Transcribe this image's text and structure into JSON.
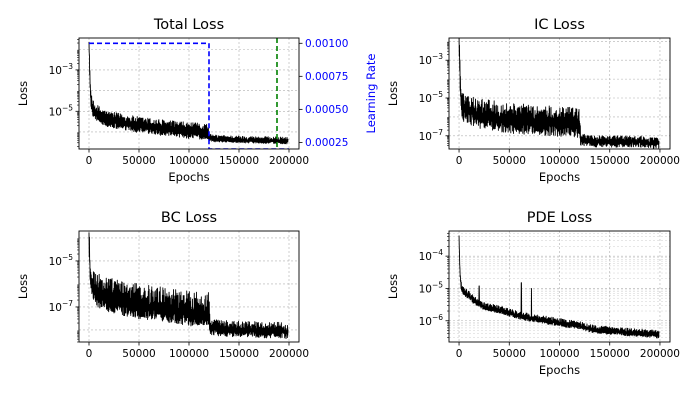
{
  "chart_data": [
    {
      "type": "line",
      "title": "Total Loss",
      "xlabel": "Epochs",
      "ylabel": "Loss",
      "ylabel_right": "Learning Rate",
      "xlim": [
        -10000,
        210000
      ],
      "ylim": [
        1.5e-07,
        0.035
      ],
      "y_scale": "log",
      "x_ticks": [
        0,
        50000,
        100000,
        150000,
        200000
      ],
      "x_tick_labels": [
        "0",
        "50000",
        "100000",
        "150000",
        "200000"
      ],
      "y_ticks": [
        0.001,
        1e-05
      ],
      "y_tick_labels": [
        "10−3",
        "10−5"
      ],
      "y2_lim": [
        0.0002,
        0.00104
      ],
      "y2_ticks": [
        0.00025,
        0.0005,
        0.00075,
        0.001
      ],
      "y2_tick_labels": [
        "0.00025",
        "0.00050",
        "0.00075",
        "0.00100"
      ],
      "grid": true,
      "series": [
        {
          "x": [
            0,
            1000,
            2000,
            3000,
            5000,
            8000,
            10000,
            15000,
            20000,
            30000,
            40000,
            50000,
            60000,
            70000,
            80000,
            90000,
            100000,
            110000,
            119000,
            120000,
            125000,
            130000,
            140000,
            150000,
            160000,
            170000,
            180000,
            190000,
            199000
          ],
          "y": [
            0.02,
            0.0002,
            3e-05,
            1.5e-05,
            9e-06,
            7e-06,
            6e-06,
            4e-06,
            3.3e-06,
            2.7e-06,
            2.2e-06,
            1.8e-06,
            1.6e-06,
            1.4e-06,
            1.2e-06,
            1.1e-06,
            9.5e-07,
            9e-07,
            8.5e-07,
            5e-07,
            4.5e-07,
            4.3e-07,
            4.2e-07,
            4e-07,
            3.9e-07,
            3.8e-07,
            3.7e-07,
            3.6e-07,
            3.5e-07
          ],
          "noise_top": [
            3,
            3,
            3,
            3,
            3,
            3,
            3,
            3,
            3,
            3,
            3,
            3,
            3,
            3,
            3,
            3,
            3,
            3,
            3,
            1.6,
            1.6,
            1.6,
            1.6,
            1.6,
            1.6,
            1.6,
            1.6,
            1.6,
            1.6
          ],
          "noise_bottom": [
            0.5,
            0.5,
            0.5,
            0.5,
            0.5,
            0.5,
            0.5,
            0.5,
            0.5,
            0.5,
            0.5,
            0.5,
            0.5,
            0.5,
            0.5,
            0.5,
            0.5,
            0.5,
            0.5,
            0.75,
            0.75,
            0.75,
            0.75,
            0.75,
            0.75,
            0.75,
            0.75,
            0.75,
            0.75
          ],
          "color": "#000000"
        }
      ],
      "lr_series": {
        "x": [
          0,
          120000,
          120000,
          200000
        ],
        "y": [
          0.001,
          0.001,
          0.0002,
          0.0002
        ],
        "color": "#0000ff",
        "style": "dashed"
      },
      "vline": {
        "x": 188000,
        "color": "#008000",
        "style": "dashed"
      }
    },
    {
      "type": "line",
      "title": "IC Loss",
      "xlabel": "Epochs",
      "ylabel": "Loss",
      "xlim": [
        -10000,
        210000
      ],
      "ylim": [
        2e-08,
        0.015
      ],
      "y_scale": "log",
      "x_ticks": [
        0,
        50000,
        100000,
        150000,
        200000
      ],
      "x_tick_labels": [
        "0",
        "50000",
        "100000",
        "150000",
        "200000"
      ],
      "y_ticks": [
        0.001,
        1e-05,
        1e-07
      ],
      "y_tick_labels": [
        "10−3",
        "10−5",
        "10−7"
      ],
      "grid": true,
      "series": [
        {
          "x": [
            0,
            1000,
            2000,
            4000,
            6000,
            10000,
            15000,
            20000,
            30000,
            40000,
            50000,
            60000,
            70000,
            80000,
            90000,
            100000,
            110000,
            120000,
            121000,
            125000,
            130000,
            140000,
            150000,
            160000,
            170000,
            180000,
            190000,
            199000
          ],
          "y": [
            0.008,
            0.00015,
            8e-06,
            3e-06,
            2.5e-06,
            2e-06,
            1.5e-06,
            1.2e-06,
            1e-06,
            8e-07,
            7e-07,
            6e-07,
            6e-07,
            5e-07,
            5e-07,
            4e-07,
            4e-07,
            4e-07,
            6e-08,
            6e-08,
            5e-08,
            5e-08,
            5e-08,
            5e-08,
            5e-08,
            5e-08,
            4e-08,
            4e-08
          ],
          "noise_top": [
            8,
            8,
            8,
            8,
            8,
            8,
            8,
            8,
            8,
            8,
            8,
            8,
            8,
            8,
            8,
            8,
            8,
            8,
            2,
            2,
            2,
            2,
            2,
            2,
            2,
            2,
            2,
            2
          ],
          "noise_bottom": [
            0.2,
            0.2,
            0.2,
            0.2,
            0.2,
            0.2,
            0.2,
            0.2,
            0.2,
            0.2,
            0.2,
            0.2,
            0.2,
            0.2,
            0.2,
            0.2,
            0.2,
            0.2,
            0.5,
            0.5,
            0.5,
            0.5,
            0.5,
            0.5,
            0.5,
            0.5,
            0.5,
            0.5
          ],
          "color": "#000000"
        }
      ]
    },
    {
      "type": "line",
      "title": "BC Loss",
      "xlabel": "",
      "ylabel": "Loss",
      "xlim": [
        -10000,
        210000
      ],
      "ylim": [
        3e-09,
        0.0002
      ],
      "y_scale": "log",
      "x_ticks": [
        0,
        50000,
        100000,
        150000,
        200000
      ],
      "x_tick_labels": [
        "0",
        "50000",
        "100000",
        "150000",
        "200000"
      ],
      "y_ticks": [
        1e-05,
        1e-07
      ],
      "y_tick_labels": [
        "10−5",
        "10−7"
      ],
      "grid": true,
      "series": [
        {
          "x": [
            0,
            1000,
            2000,
            4000,
            6000,
            10000,
            15000,
            20000,
            30000,
            40000,
            50000,
            60000,
            70000,
            80000,
            90000,
            100000,
            110000,
            119000,
            120000,
            121000,
            125000,
            130000,
            140000,
            150000,
            160000,
            170000,
            180000,
            190000,
            199000
          ],
          "y": [
            8e-05,
            5e-06,
            1.2e-06,
            6e-07,
            4e-07,
            3e-07,
            2.5e-07,
            2e-07,
            1.5e-07,
            1.2e-07,
            1e-07,
            9e-08,
            8e-08,
            7e-08,
            6e-08,
            5e-08,
            5e-08,
            5e-08,
            4e-08,
            1.2e-08,
            1.2e-08,
            1.1e-08,
            1e-08,
            1e-08,
            1e-08,
            9e-09,
            9e-09,
            9e-09,
            8e-09
          ],
          "noise_top": [
            10,
            10,
            10,
            10,
            10,
            10,
            10,
            10,
            10,
            10,
            10,
            10,
            10,
            10,
            10,
            10,
            10,
            10,
            10,
            2.5,
            2.5,
            2.5,
            2.5,
            2.5,
            2.5,
            2.5,
            2.5,
            2.5,
            2.5
          ],
          "noise_bottom": [
            0.3,
            0.3,
            0.3,
            0.3,
            0.3,
            0.3,
            0.3,
            0.3,
            0.3,
            0.3,
            0.3,
            0.3,
            0.3,
            0.3,
            0.3,
            0.3,
            0.3,
            0.3,
            0.3,
            0.5,
            0.5,
            0.5,
            0.5,
            0.5,
            0.5,
            0.5,
            0.5,
            0.5,
            0.5
          ],
          "color": "#000000"
        }
      ]
    },
    {
      "type": "line",
      "title": "PDE Loss",
      "xlabel": "Epochs",
      "ylabel": "Loss",
      "xlim": [
        -10000,
        210000
      ],
      "ylim": [
        2.2e-07,
        0.0006
      ],
      "y_scale": "log",
      "x_ticks": [
        0,
        50000,
        100000,
        150000,
        200000
      ],
      "x_tick_labels": [
        "0",
        "50000",
        "100000",
        "150000",
        "200000"
      ],
      "y_ticks": [
        0.0001,
        1e-05,
        1e-06
      ],
      "y_tick_labels": [
        "10−4",
        "10−5",
        "10−6"
      ],
      "grid": true,
      "minor_grid": true,
      "series": [
        {
          "x": [
            0,
            500,
            1000,
            2000,
            3000,
            5000,
            8000,
            10000,
            15000,
            20000,
            25000,
            30000,
            40000,
            50000,
            60000,
            70000,
            80000,
            90000,
            100000,
            110000,
            120000,
            130000,
            140000,
            150000,
            160000,
            170000,
            180000,
            190000,
            199000
          ],
          "y": [
            0.0004,
            0.0001,
            3e-05,
            1.2e-05,
            9e-06,
            7.5e-06,
            6.5e-06,
            6e-06,
            4e-06,
            3.2e-06,
            2.7e-06,
            2.5e-06,
            2.1e-06,
            1.7e-06,
            1.4e-06,
            1.2e-06,
            1.1e-06,
            9.5e-07,
            8.5e-07,
            7.5e-07,
            7e-07,
            5.5e-07,
            5e-07,
            4.7e-07,
            4.5e-07,
            4.2e-07,
            4e-07,
            3.8e-07,
            3.6e-07
          ],
          "noise_top": [
            1.4,
            1.4,
            1.4,
            1.4,
            1.4,
            1.4,
            1.4,
            1.4,
            1.4,
            1.4,
            1.4,
            1.4,
            1.4,
            1.4,
            1.4,
            1.4,
            1.4,
            1.4,
            1.4,
            1.4,
            1.4,
            1.4,
            1.4,
            1.4,
            1.4,
            1.4,
            1.4,
            1.4,
            1.4
          ],
          "noise_bottom": [
            0.8,
            0.8,
            0.8,
            0.8,
            0.8,
            0.8,
            0.8,
            0.8,
            0.8,
            0.8,
            0.8,
            0.8,
            0.8,
            0.8,
            0.8,
            0.8,
            0.8,
            0.8,
            0.8,
            0.8,
            0.8,
            0.8,
            0.8,
            0.8,
            0.8,
            0.8,
            0.8,
            0.8,
            0.8
          ],
          "spikes": [
            {
              "x": 20000,
              "y": 1.2e-05
            },
            {
              "x": 62000,
              "y": 1.5e-05
            },
            {
              "x": 72000,
              "y": 1e-05
            }
          ],
          "color": "#000000"
        }
      ]
    }
  ]
}
